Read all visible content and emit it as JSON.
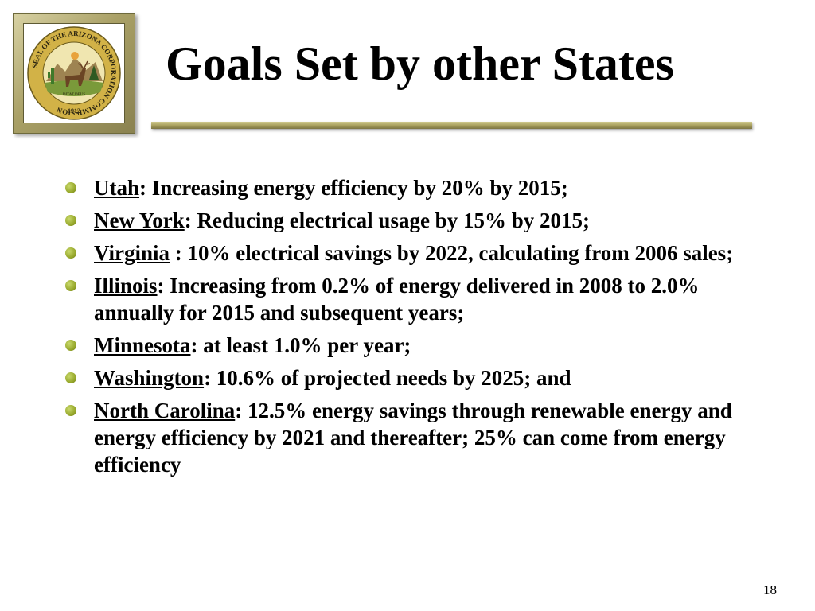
{
  "slide": {
    "title": "Goals Set by other States",
    "page_number": "18",
    "logo_text": {
      "ring": "SEAL OF THE ARIZONA CORPORATION COMMISSION",
      "motto": "DITAT DEUS",
      "year": "1912"
    },
    "bullets": [
      {
        "state": "Utah",
        "text": ":  Increasing energy efficiency by 20% by 2015;"
      },
      {
        "state": "New York",
        "text": ":  Reducing electrical usage by 15% by 2015;"
      },
      {
        "state": "Virginia",
        "text": " : 10% electrical savings by 2022, calculating from 2006 sales;"
      },
      {
        "state": "Illinois",
        "text": ": Increasing from 0.2% of energy delivered in 2008 to 2.0% annually for 2015 and subsequent years;"
      },
      {
        "state": "Minnesota",
        "text": ": at least 1.0% per year;"
      },
      {
        "state": "Washington",
        "text": ":  10.6% of projected needs by 2025; and"
      },
      {
        "state": "North Carolina",
        "text": ":  12.5% energy savings through renewable energy and energy efficiency by 2021 and thereafter; 25% can come from energy efficiency"
      }
    ]
  },
  "colors": {
    "bullet": "#97a82c",
    "frame": "#a9a066",
    "seal_ring": "#d2b247"
  }
}
